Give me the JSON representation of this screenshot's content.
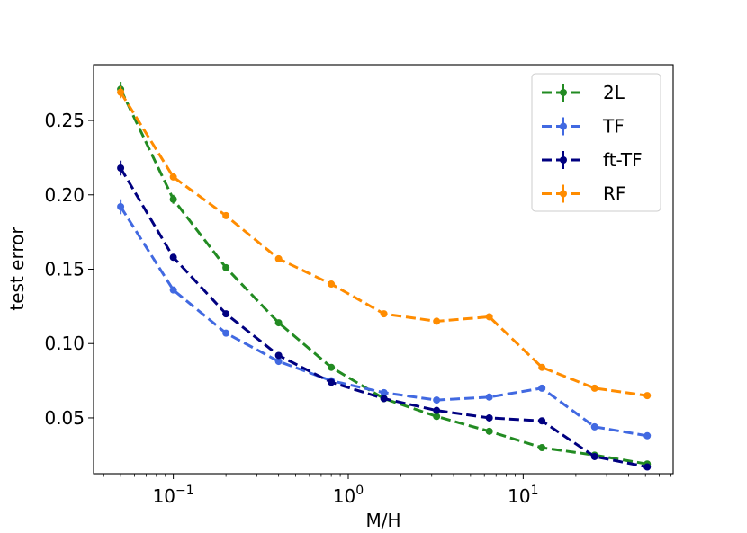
{
  "chart_data": {
    "type": "line",
    "title": "",
    "xlabel": "M/H",
    "ylabel": "test error",
    "xscale": "log",
    "xlim": [
      0.035,
      72
    ],
    "ylim": [
      0.0125,
      0.2875
    ],
    "x_major_ticks": [
      {
        "value": 0.1,
        "base": "10",
        "exp": "−1"
      },
      {
        "value": 1,
        "base": "10",
        "exp": "0"
      },
      {
        "value": 10,
        "base": "10",
        "exp": "1"
      }
    ],
    "y_ticks": [
      {
        "value": 0.05,
        "label": "0.05"
      },
      {
        "value": 0.1,
        "label": "0.10"
      },
      {
        "value": 0.15,
        "label": "0.15"
      },
      {
        "value": 0.2,
        "label": "0.20"
      },
      {
        "value": 0.25,
        "label": "0.25"
      }
    ],
    "legend_position": "top-right",
    "x": [
      0.05,
      0.1,
      0.2,
      0.4,
      0.8,
      1.6,
      3.2,
      6.4,
      12.8,
      25.6,
      51.2
    ],
    "series": [
      {
        "name": "2L",
        "color": "#228b22",
        "values": [
          0.271,
          0.197,
          0.151,
          0.114,
          0.084,
          0.063,
          0.051,
          0.041,
          0.03,
          0.025,
          0.019
        ],
        "errors": [
          0.005,
          0.003,
          0.002,
          0.002,
          0.002,
          0.001,
          0.001,
          0.001,
          0.001,
          0.001,
          0.001
        ]
      },
      {
        "name": "TF",
        "color": "#4169e1",
        "values": [
          0.192,
          0.136,
          0.107,
          0.088,
          0.075,
          0.067,
          0.062,
          0.064,
          0.07,
          0.044,
          0.038
        ],
        "errors": [
          0.005,
          0.002,
          0.002,
          0.002,
          0.002,
          0.001,
          0.001,
          0.001,
          0.001,
          0.001,
          0.001
        ]
      },
      {
        "name": "ft-TF",
        "color": "#000080",
        "values": [
          0.218,
          0.158,
          0.12,
          0.092,
          0.074,
          0.063,
          0.055,
          0.05,
          0.048,
          0.024,
          0.017
        ],
        "errors": [
          0.005,
          0.002,
          0.002,
          0.002,
          0.002,
          0.001,
          0.001,
          0.001,
          0.001,
          0.001,
          0.001
        ]
      },
      {
        "name": "RF",
        "color": "#ff8c00",
        "values": [
          0.269,
          0.212,
          0.186,
          0.157,
          0.14,
          0.12,
          0.115,
          0.118,
          0.084,
          0.07,
          0.065
        ],
        "errors": [
          0.004,
          0.002,
          0.002,
          0.001,
          0.001,
          0.001,
          0.001,
          0.001,
          0.001,
          0.001,
          0.001
        ]
      }
    ]
  }
}
